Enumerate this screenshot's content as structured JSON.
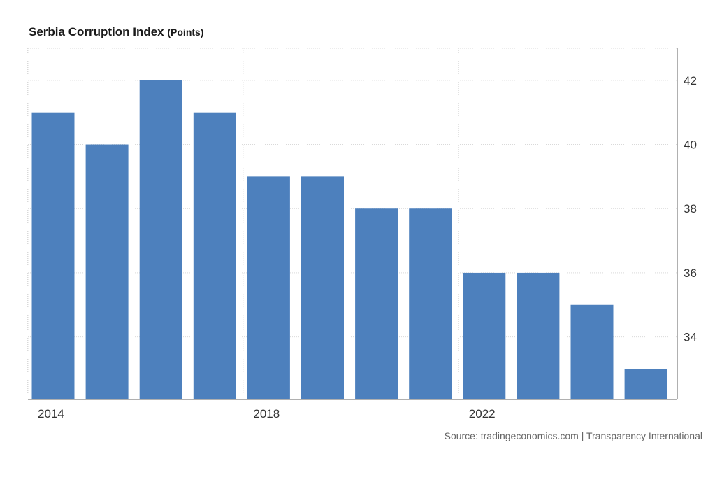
{
  "header": {
    "title": "Serbia Corruption Index",
    "unit": "(Points)"
  },
  "footer": {
    "source": "Source: tradingeconomics.com | Transparency International"
  },
  "colors": {
    "bar": "#4d80bd",
    "grid": "#d9d9d9",
    "axis": "#b0b0b0"
  },
  "chart_data": {
    "type": "bar",
    "title": "Serbia Corruption Index (Points)",
    "categories": [
      "2014",
      "2015",
      "2016",
      "2017",
      "2018",
      "2019",
      "2020",
      "2021",
      "2022",
      "2023",
      "2024",
      "2025"
    ],
    "values": [
      41,
      40,
      42,
      41,
      39,
      39,
      38,
      38,
      36,
      36,
      35,
      33
    ],
    "x_tick_labels": [
      "2014",
      "2018",
      "2022"
    ],
    "y_ticks": [
      34,
      36,
      38,
      40,
      42
    ],
    "ylim": [
      32.05,
      43
    ],
    "y_axis_side": "right",
    "grid": true,
    "xlabel": "",
    "ylabel": ""
  }
}
